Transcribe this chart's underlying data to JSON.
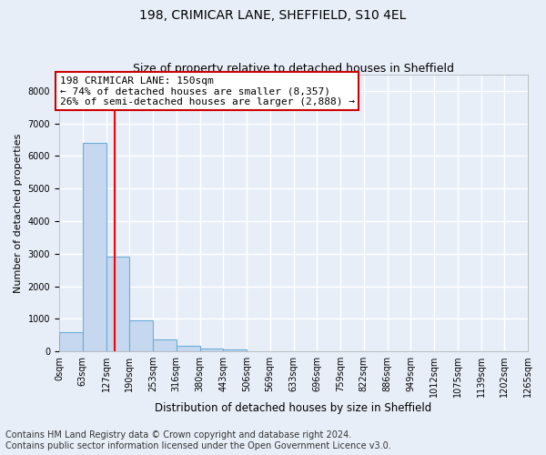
{
  "title1": "198, CRIMICAR LANE, SHEFFIELD, S10 4EL",
  "title2": "Size of property relative to detached houses in Sheffield",
  "xlabel": "Distribution of detached houses by size in Sheffield",
  "ylabel": "Number of detached properties",
  "bin_edges": [
    0,
    63,
    127,
    190,
    253,
    316,
    380,
    443,
    506,
    569,
    633,
    696,
    759,
    822,
    886,
    949,
    1012,
    1075,
    1139,
    1202,
    1265
  ],
  "bar_heights": [
    580,
    6400,
    2900,
    950,
    360,
    160,
    80,
    50,
    10,
    5,
    3,
    2,
    1,
    1,
    0,
    0,
    0,
    0,
    0,
    0
  ],
  "bar_color": "#c5d8f0",
  "bar_edge_color": "#6aaed6",
  "red_line_x": 150,
  "ylim": [
    0,
    8500
  ],
  "yticks": [
    0,
    1000,
    2000,
    3000,
    4000,
    5000,
    6000,
    7000,
    8000
  ],
  "annotation_title": "198 CRIMICAR LANE: 150sqm",
  "annotation_line1": "← 74% of detached houses are smaller (8,357)",
  "annotation_line2": "26% of semi-detached houses are larger (2,888) →",
  "annotation_box_color": "#ffffff",
  "annotation_box_edge": "#cc0000",
  "footer_line1": "Contains HM Land Registry data © Crown copyright and database right 2024.",
  "footer_line2": "Contains public sector information licensed under the Open Government Licence v3.0.",
  "bg_color": "#e8eef8",
  "plot_bg_color": "#e8eef8",
  "grid_color": "#ffffff",
  "title1_fontsize": 10,
  "title2_fontsize": 9,
  "xlabel_fontsize": 8.5,
  "ylabel_fontsize": 8,
  "tick_fontsize": 7,
  "footer_fontsize": 7,
  "annotation_fontsize": 8
}
